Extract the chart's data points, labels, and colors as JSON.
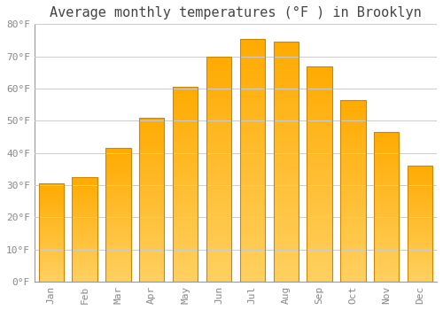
{
  "months": [
    "Jan",
    "Feb",
    "Mar",
    "Apr",
    "May",
    "Jun",
    "Jul",
    "Aug",
    "Sep",
    "Oct",
    "Nov",
    "Dec"
  ],
  "temperatures": [
    30.5,
    32.5,
    41.5,
    51.0,
    60.5,
    70.0,
    75.5,
    74.5,
    67.0,
    56.5,
    46.5,
    36.0
  ],
  "bar_color_top": "#FFAA00",
  "bar_color_bottom": "#FFD060",
  "bar_edge_color": "#CC8800",
  "background_color": "#FFFFFF",
  "grid_color": "#CCCCCC",
  "title": "Average monthly temperatures (°F ) in Brooklyn",
  "title_fontsize": 11,
  "title_color": "#444444",
  "tick_color": "#888888",
  "tick_fontsize": 8,
  "ylim": [
    0,
    80
  ],
  "ytick_step": 10,
  "bar_width": 0.75
}
